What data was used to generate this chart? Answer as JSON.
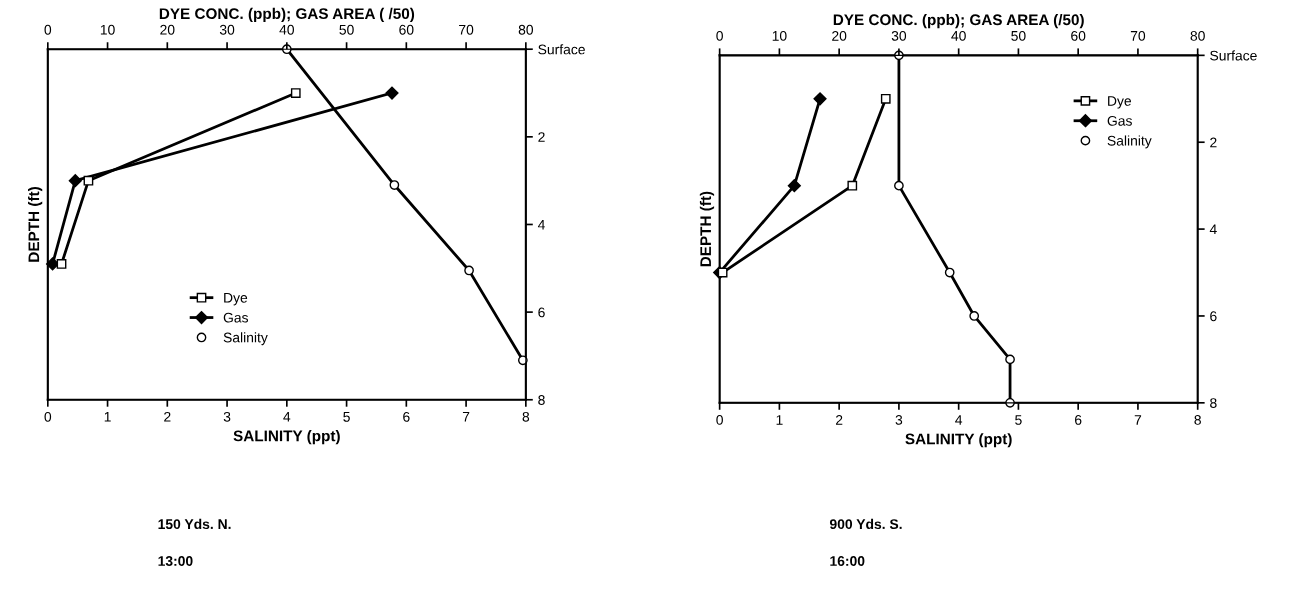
{
  "chart_data": [
    {
      "type": "line",
      "xlabel": "SALINITY (ppt)",
      "x2label": "DYE CONC. (ppb); GAS AREA ( /50)",
      "ylabel": "DEPTH (ft)",
      "xlim": [
        0,
        8
      ],
      "xticks": [
        0,
        1,
        2,
        3,
        4,
        5,
        6,
        7,
        8
      ],
      "x2lim": [
        0,
        80
      ],
      "x2ticks": [
        0,
        10,
        20,
        30,
        40,
        50,
        60,
        70,
        80
      ],
      "ylim": [
        8,
        0
      ],
      "yticks": [
        {
          "value": 0,
          "label": "Surface"
        },
        2,
        4,
        6,
        8
      ],
      "grid": false,
      "legend": "bottom",
      "series": [
        {
          "name": "Dye",
          "color": "#000000",
          "axis": "x2",
          "marker": "square",
          "x": [
            41.5,
            6.8,
            2.3
          ],
          "values": [
            1,
            3,
            4.9
          ]
        },
        {
          "name": "Gas",
          "color": "#000000",
          "axis": "x2",
          "marker": "diamond",
          "x": [
            57.6,
            4.6,
            0.8
          ],
          "values": [
            1,
            3,
            4.9
          ]
        },
        {
          "name": "Salinity",
          "color": "#000000",
          "marker": "circle",
          "x": [
            4.0,
            5.8,
            7.05,
            7.95
          ],
          "values": [
            0,
            3.1,
            5.05,
            7.1
          ]
        }
      ],
      "annotations": [
        "150 Yds. N.",
        "13:00"
      ]
    },
    {
      "type": "line",
      "xlabel": "SALINITY (ppt)",
      "x2label": "DYE CONC. (ppb); GAS AREA (/50)",
      "ylabel": "DEPTH (ft)",
      "xlim": [
        0,
        8
      ],
      "xticks": [
        0,
        1,
        2,
        3,
        4,
        5,
        6,
        7,
        8
      ],
      "x2lim": [
        0,
        80
      ],
      "x2ticks": [
        0,
        10,
        20,
        30,
        40,
        50,
        60,
        70,
        80
      ],
      "ylim": [
        8,
        0
      ],
      "yticks": [
        {
          "value": 0,
          "label": "Surface"
        },
        2,
        4,
        6,
        8
      ],
      "grid": false,
      "legend": "top right",
      "series": [
        {
          "name": "Dye",
          "color": "#000000",
          "axis": "x2",
          "marker": "square",
          "x": [
            27.8,
            22.2,
            0.5
          ],
          "values": [
            1,
            3,
            5
          ]
        },
        {
          "name": "Gas",
          "color": "#000000",
          "axis": "x2",
          "marker": "diamond",
          "x": [
            16.8,
            12.5,
            0
          ],
          "values": [
            1,
            3,
            5
          ]
        },
        {
          "name": "Salinity",
          "color": "#000000",
          "marker": "circle",
          "x": [
            3.0,
            3.0,
            3.85,
            4.26,
            4.86,
            4.86
          ],
          "values": [
            0,
            3,
            5,
            6,
            7,
            8
          ]
        }
      ],
      "annotations": [
        "900 Yds. S.",
        "16:00"
      ]
    }
  ]
}
